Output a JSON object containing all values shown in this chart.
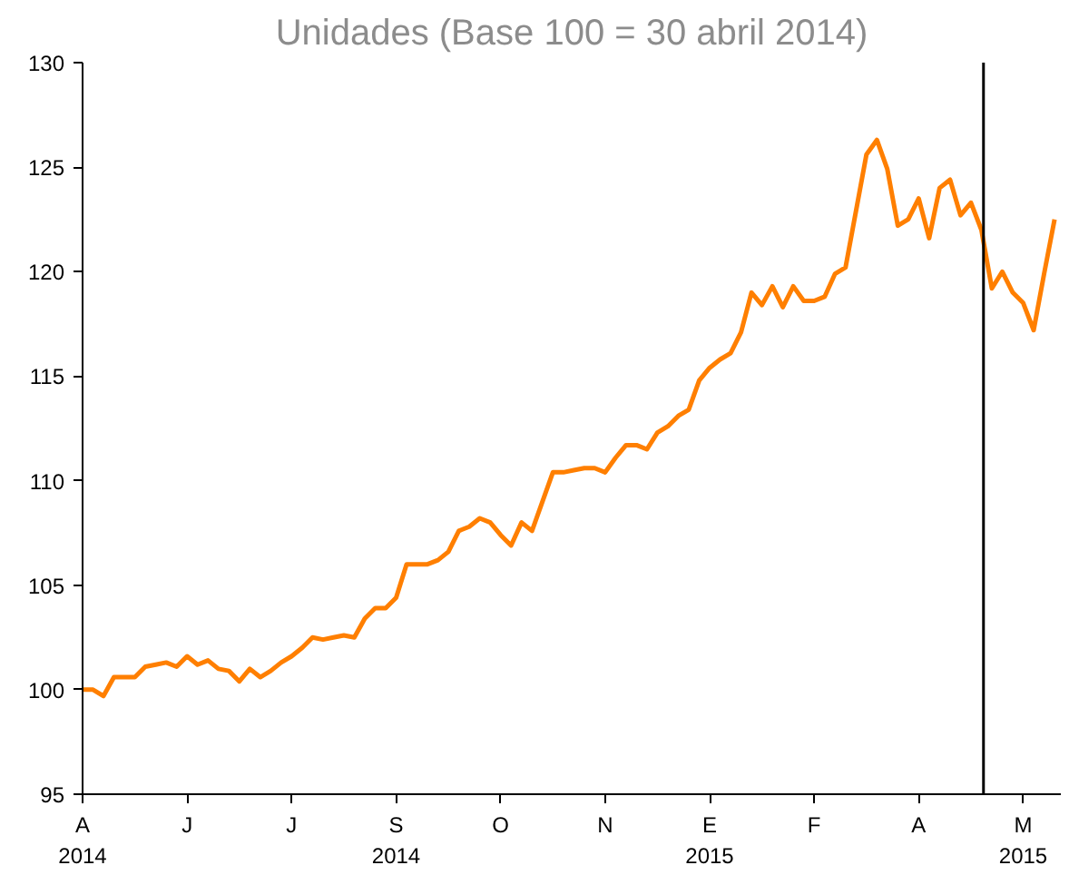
{
  "chart_data": {
    "type": "line",
    "title": "Unidades (Base 100 = 30 abril 2014)",
    "categories": [
      "A\n2014",
      null,
      null,
      null,
      null,
      null,
      null,
      null,
      null,
      null,
      "J",
      null,
      null,
      null,
      null,
      null,
      null,
      null,
      null,
      null,
      "J",
      null,
      null,
      null,
      null,
      null,
      null,
      null,
      null,
      null,
      "S\n2014",
      null,
      null,
      null,
      null,
      null,
      null,
      null,
      null,
      null,
      "O",
      null,
      null,
      null,
      null,
      null,
      null,
      null,
      null,
      null,
      "N",
      null,
      null,
      null,
      null,
      null,
      null,
      null,
      null,
      null,
      "E\n2015",
      null,
      null,
      null,
      null,
      null,
      null,
      null,
      null,
      null,
      "F",
      null,
      null,
      null,
      null,
      null,
      null,
      null,
      null,
      null,
      "A",
      null,
      null,
      null,
      null,
      null,
      null,
      null,
      null,
      null,
      "M\n2015",
      null,
      null,
      null
    ],
    "series": [
      {
        "color": "#ff7f00",
        "values": [
          100.0,
          100.0,
          99.7,
          100.6,
          100.6,
          100.6,
          101.1,
          101.2,
          101.3,
          101.1,
          101.6,
          101.2,
          101.4,
          101.0,
          100.9,
          100.4,
          101.0,
          100.6,
          100.9,
          101.3,
          101.6,
          102.0,
          102.5,
          102.4,
          102.5,
          102.6,
          102.5,
          103.4,
          103.9,
          103.9,
          104.4,
          106.0,
          106.0,
          106.0,
          106.2,
          106.6,
          107.6,
          107.8,
          108.2,
          108.0,
          107.4,
          106.9,
          108.0,
          107.6,
          109.0,
          110.4,
          110.4,
          110.5,
          110.6,
          110.6,
          110.4,
          111.1,
          111.7,
          111.7,
          111.5,
          112.3,
          112.6,
          113.1,
          113.4,
          114.8,
          115.4,
          115.8,
          116.1,
          117.1,
          119.0,
          118.4,
          119.3,
          118.3,
          119.3,
          118.6,
          118.6,
          118.8,
          119.9,
          120.2,
          122.9,
          125.6,
          126.3,
          124.9,
          122.2,
          122.5,
          123.5,
          121.6,
          124.0,
          124.4,
          122.7,
          123.3,
          122.0,
          119.2,
          120.0,
          119.0,
          118.5,
          117.2,
          119.9,
          122.5
        ]
      }
    ],
    "ylim": [
      95,
      130
    ],
    "yticks": [
      95,
      100,
      105,
      110,
      115,
      120,
      125,
      130
    ],
    "grid": false,
    "marker": "none",
    "line_style": "solid"
  }
}
